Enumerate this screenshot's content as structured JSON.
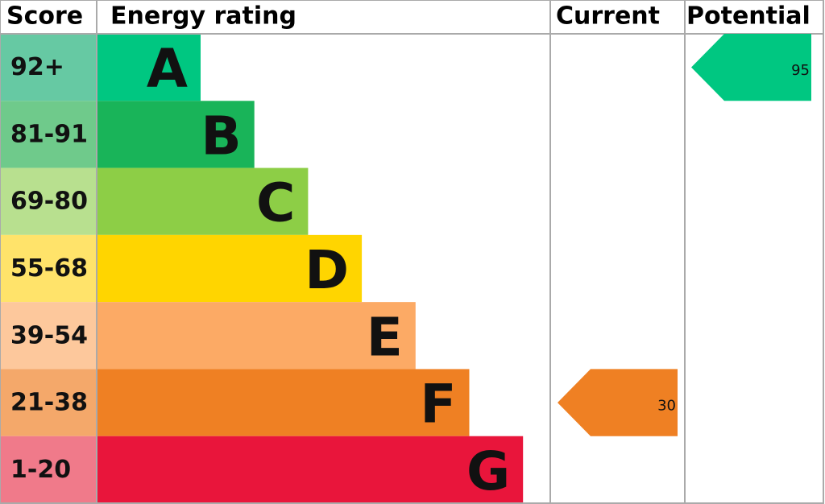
{
  "chart_data": {
    "type": "epc",
    "headers": {
      "score": "Score",
      "rating": "Energy rating",
      "current": "Current",
      "potential": "Potential"
    },
    "bands": [
      {
        "score": "92+",
        "letter": "A",
        "color": "#00c781",
        "score_color": "#66c9a3"
      },
      {
        "score": "81-91",
        "letter": "B",
        "color": "#19b459",
        "score_color": "#6fca8b"
      },
      {
        "score": "69-80",
        "letter": "C",
        "color": "#8dce46",
        "score_color": "#b8e08f"
      },
      {
        "score": "55-68",
        "letter": "D",
        "color": "#ffd500",
        "score_color": "#ffe36a"
      },
      {
        "score": "39-54",
        "letter": "E",
        "color": "#fcaa65",
        "score_color": "#fdc89c"
      },
      {
        "score": "21-38",
        "letter": "F",
        "color": "#ef8023",
        "score_color": "#f4a86a"
      },
      {
        "score": "1-20",
        "letter": "G",
        "color": "#e9153b",
        "score_color": "#f07a8a"
      }
    ],
    "current": 30,
    "potential": 95
  }
}
